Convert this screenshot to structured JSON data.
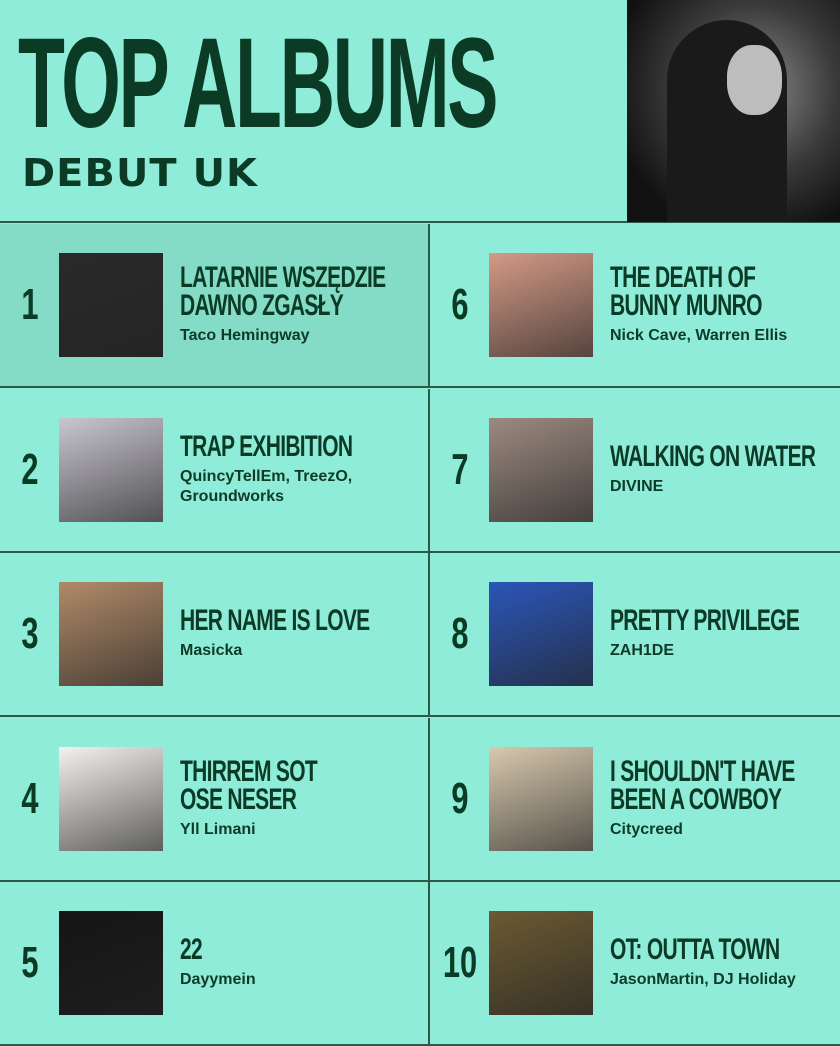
{
  "header": {
    "title": "TOP ALBUMS",
    "subtitle": "DEBUT UK"
  },
  "albums": [
    {
      "rank": "1",
      "title_lines": [
        "LATARNIE WSZĘDZIE",
        "DAWNO ZGASŁY"
      ],
      "artist_lines": [
        "Taco Hemingway"
      ],
      "cover": "#2a2a2a"
    },
    {
      "rank": "2",
      "title_lines": [
        "TRAP EXHIBITION"
      ],
      "artist_lines": [
        "QuincyTellEm, TreezO,",
        "Groundworks"
      ],
      "cover": "#c9c6cf"
    },
    {
      "rank": "3",
      "title_lines": [
        "HER NAME IS LOVE"
      ],
      "artist_lines": [
        "Masicka"
      ],
      "cover": "#b08a68"
    },
    {
      "rank": "4",
      "title_lines": [
        "THIRREM SOT",
        "OSE NESER"
      ],
      "artist_lines": [
        "Yll Limani"
      ],
      "cover": "#f4f2ee"
    },
    {
      "rank": "5",
      "title_lines": [
        "22"
      ],
      "artist_lines": [
        "Dayymein"
      ],
      "cover": "#151515"
    },
    {
      "rank": "6",
      "title_lines": [
        "THE DEATH OF",
        "BUNNY MUNRO"
      ],
      "artist_lines": [
        "Nick Cave, Warren Ellis"
      ],
      "cover": "#d49a86"
    },
    {
      "rank": "7",
      "title_lines": [
        "WALKING ON WATER"
      ],
      "artist_lines": [
        "DIVINE"
      ],
      "cover": "#9c8a80"
    },
    {
      "rank": "8",
      "title_lines": [
        "PRETTY PRIVILEGE"
      ],
      "artist_lines": [
        "ZAH1DE"
      ],
      "cover": "#2b56b8"
    },
    {
      "rank": "9",
      "title_lines": [
        "I SHOULDN'T HAVE",
        "BEEN A COWBOY"
      ],
      "artist_lines": [
        "Citycreed"
      ],
      "cover": "#d8c9ae"
    },
    {
      "rank": "10",
      "title_lines": [
        "OT: OUTTA TOWN"
      ],
      "artist_lines": [
        "JasonMartin, DJ Holiday"
      ],
      "cover": "#6b5a32"
    }
  ]
}
